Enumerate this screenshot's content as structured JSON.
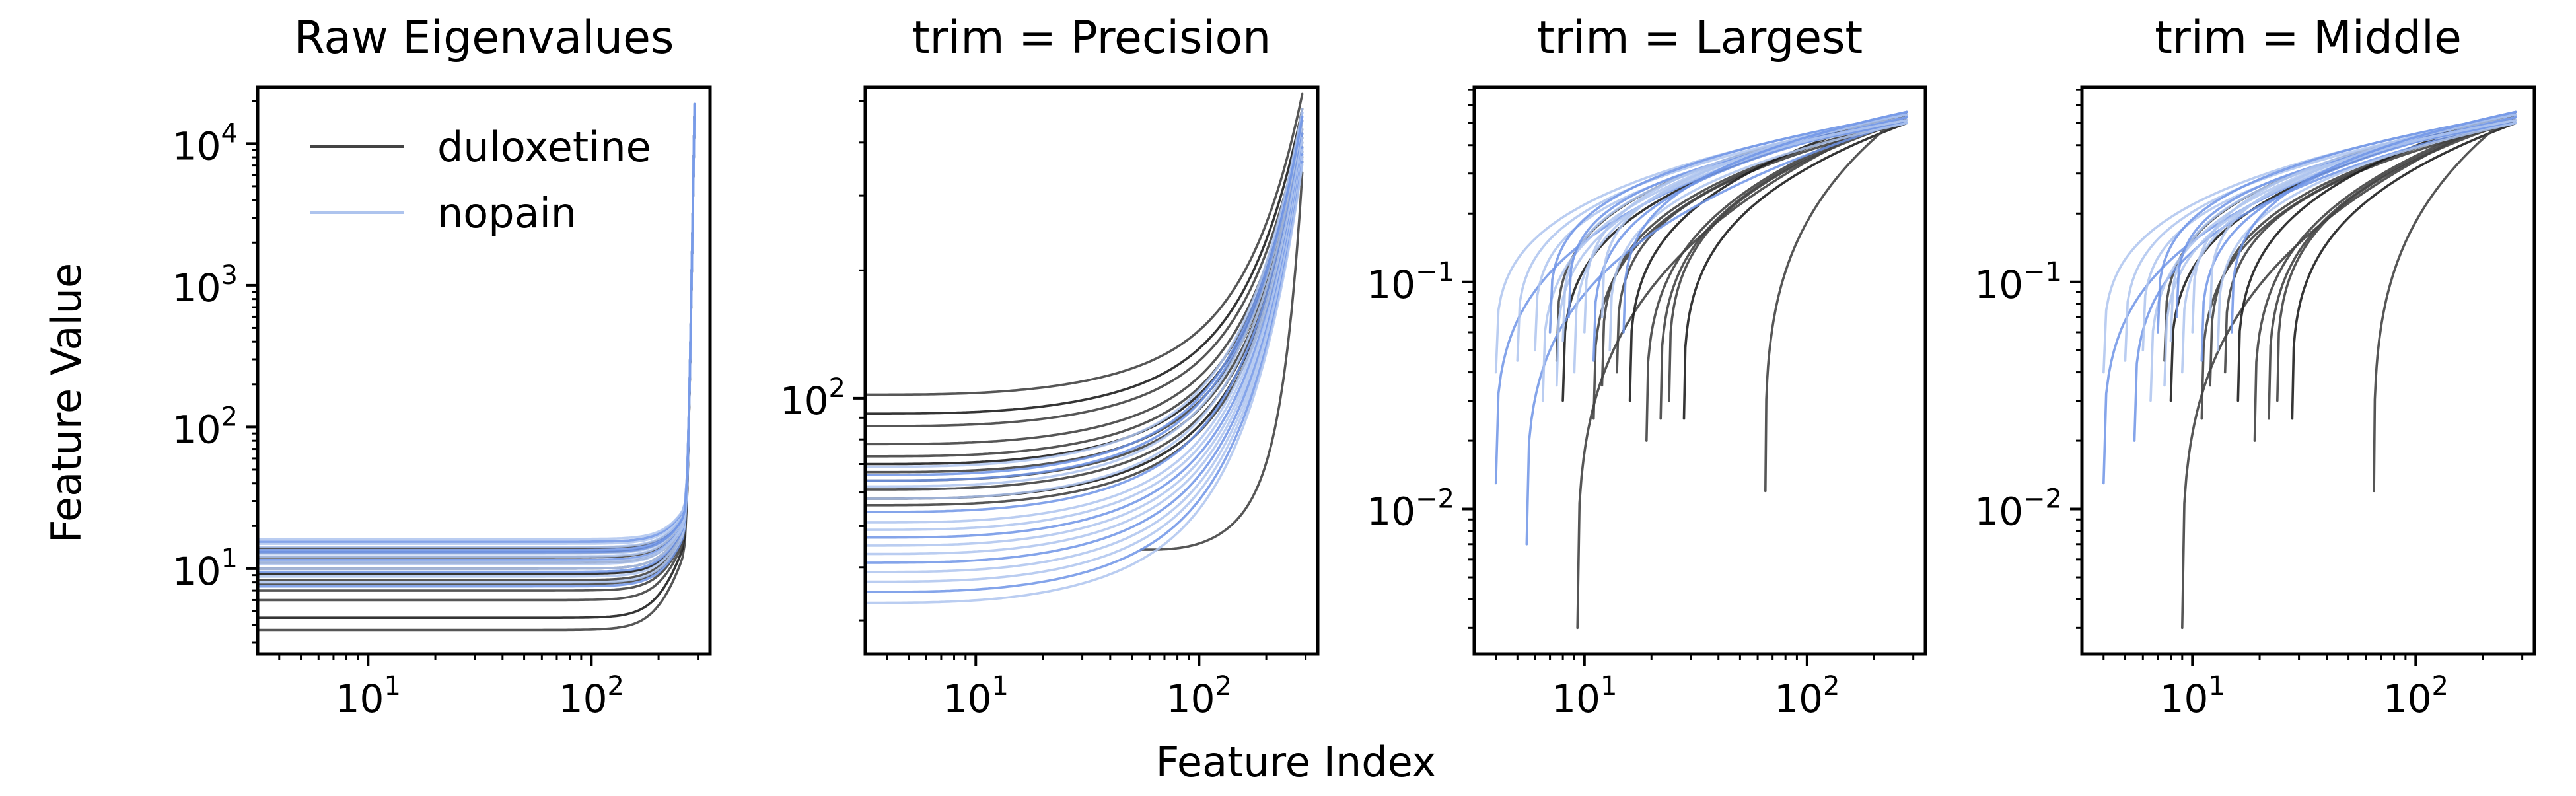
{
  "figure": {
    "xlabel": "Feature Index",
    "ylabel": "Feature Value",
    "legend": {
      "placement": "upper-left of first panel",
      "entries": [
        {
          "label": "duloxetine",
          "color": "#444444"
        },
        {
          "label": "nopain",
          "color": "#aec4ee"
        }
      ]
    }
  },
  "colors": {
    "duloxetine": "#444444",
    "duloxetine_dark": "#1f1f1f",
    "nopain": "#aec4ee",
    "nopain_strong": "#6f94e6"
  },
  "chart_data": [
    {
      "type": "line",
      "title": "Raw Eigenvalues",
      "xscale": "log",
      "yscale": "log",
      "xlim": [
        3.2,
        340
      ],
      "ylim": [
        2.5,
        25000
      ],
      "xticks": [
        {
          "value": 10,
          "base": "10",
          "exp": "1"
        },
        {
          "value": 100,
          "base": "10",
          "exp": "2"
        }
      ],
      "yticks": [
        {
          "value": 10,
          "base": "10",
          "exp": "1"
        },
        {
          "value": 100,
          "base": "10",
          "exp": "2"
        },
        {
          "value": 1000,
          "base": "10",
          "exp": "3"
        },
        {
          "value": 10000,
          "base": "10",
          "exp": "4"
        }
      ],
      "curves": {
        "kind": "raw",
        "n_features": 290,
        "last_value": 19000
      },
      "series": [
        {
          "name": "duloxetine",
          "curves": [
            {
              "start": 3.7,
              "pre_end": 21
            },
            {
              "start": 4.5,
              "pre_end": 24
            },
            {
              "start": 7.0,
              "pre_end": 26
            },
            {
              "start": 7.8,
              "pre_end": 27
            },
            {
              "start": 8.3,
              "pre_end": 28
            },
            {
              "start": 9.2,
              "pre_end": 28
            },
            {
              "start": 10.0,
              "pre_end": 30
            },
            {
              "start": 11.0,
              "pre_end": 30
            },
            {
              "start": 12.0,
              "pre_end": 32
            },
            {
              "start": 13.0,
              "pre_end": 33
            },
            {
              "start": 14.0,
              "pre_end": 33
            },
            {
              "start": 6.0,
              "pre_end": 25
            }
          ]
        },
        {
          "name": "nopain",
          "curves": [
            {
              "start": 7.5,
              "pre_end": 26
            },
            {
              "start": 8.0,
              "pre_end": 27
            },
            {
              "start": 8.8,
              "pre_end": 28
            },
            {
              "start": 9.5,
              "pre_end": 29
            },
            {
              "start": 10.0,
              "pre_end": 30
            },
            {
              "start": 10.8,
              "pre_end": 31
            },
            {
              "start": 11.5,
              "pre_end": 31
            },
            {
              "start": 12.2,
              "pre_end": 32
            },
            {
              "start": 12.8,
              "pre_end": 33
            },
            {
              "start": 13.5,
              "pre_end": 34
            },
            {
              "start": 14.2,
              "pre_end": 34
            },
            {
              "start": 15.0,
              "pre_end": 35
            },
            {
              "start": 15.5,
              "pre_end": 36
            },
            {
              "start": 16.2,
              "pre_end": 36
            },
            {
              "start": 11.2,
              "pre_end": 30
            },
            {
              "start": 13.1,
              "pre_end": 33
            }
          ]
        }
      ]
    },
    {
      "type": "line",
      "title": "trim = Precision",
      "xscale": "log",
      "yscale": "log",
      "xlim": [
        3.2,
        340
      ],
      "ylim": [
        25,
        540
      ],
      "xticks": [
        {
          "value": 10,
          "base": "10",
          "exp": "1"
        },
        {
          "value": 100,
          "base": "10",
          "exp": "2"
        }
      ],
      "yticks": [
        {
          "value": 100,
          "base": "10",
          "exp": "2"
        }
      ],
      "curves": {
        "kind": "precision",
        "end_x": 290
      },
      "series": [
        {
          "name": "duloxetine",
          "curves": [
            {
              "x0": 3.2,
              "start": 102,
              "end": 520
            },
            {
              "x0": 3.2,
              "start": 92,
              "end": 480
            },
            {
              "x0": 3.2,
              "start": 86,
              "end": 450
            },
            {
              "x0": 3.2,
              "start": 78,
              "end": 430
            },
            {
              "x0": 3.2,
              "start": 73,
              "end": 420
            },
            {
              "x0": 3.2,
              "start": 70,
              "end": 410
            },
            {
              "x0": 3.2,
              "start": 67,
              "end": 400
            },
            {
              "x0": 3.2,
              "start": 64,
              "end": 390
            },
            {
              "x0": 3.2,
              "start": 61,
              "end": 380
            },
            {
              "x0": 3.2,
              "start": 58,
              "end": 370
            },
            {
              "x0": 3.2,
              "start": 56,
              "end": 360
            },
            {
              "x0": 55,
              "start": 44,
              "end": 340
            }
          ]
        },
        {
          "name": "nopain",
          "curves": [
            {
              "x0": 3.2,
              "start": 66,
              "end": 470
            },
            {
              "x0": 3.2,
              "start": 62,
              "end": 450
            },
            {
              "x0": 3.2,
              "start": 58,
              "end": 430
            },
            {
              "x0": 3.2,
              "start": 54,
              "end": 420
            },
            {
              "x0": 3.2,
              "start": 51,
              "end": 410
            },
            {
              "x0": 3.2,
              "start": 49,
              "end": 400
            },
            {
              "x0": 3.2,
              "start": 47,
              "end": 390
            },
            {
              "x0": 3.2,
              "start": 45,
              "end": 385
            },
            {
              "x0": 3.2,
              "start": 43,
              "end": 380
            },
            {
              "x0": 3.2,
              "start": 41,
              "end": 375
            },
            {
              "x0": 3.2,
              "start": 39,
              "end": 370
            },
            {
              "x0": 3.2,
              "start": 37,
              "end": 365
            },
            {
              "x0": 3.2,
              "start": 35,
              "end": 360
            },
            {
              "x0": 3.2,
              "start": 33,
              "end": 355
            },
            {
              "x0": 3.2,
              "start": 69,
              "end": 480
            },
            {
              "x0": 3.2,
              "start": 64,
              "end": 460
            }
          ]
        }
      ]
    },
    {
      "type": "line",
      "title": "trim = Largest",
      "xscale": "log",
      "yscale": "log",
      "xlim": [
        3.2,
        340
      ],
      "ylim": [
        0.0023,
        0.72
      ],
      "xticks": [
        {
          "value": 10,
          "base": "10",
          "exp": "1"
        },
        {
          "value": 100,
          "base": "10",
          "exp": "2"
        }
      ],
      "yticks": [
        {
          "value": 0.01,
          "base": "10",
          "exp": "−2"
        },
        {
          "value": 0.1,
          "base": "10",
          "exp": "−1"
        }
      ],
      "curves": {
        "kind": "trim",
        "end_x": 280
      },
      "series": [
        {
          "name": "duloxetine",
          "curves": [
            {
              "x0": 9.3,
              "y0": 0.003
            },
            {
              "x0": 8.0,
              "y0": 0.03
            },
            {
              "x0": 11,
              "y0": 0.025
            },
            {
              "x0": 12,
              "y0": 0.035
            },
            {
              "x0": 14,
              "y0": 0.04
            },
            {
              "x0": 16,
              "y0": 0.03
            },
            {
              "x0": 19,
              "y0": 0.02
            },
            {
              "x0": 22,
              "y0": 0.025
            },
            {
              "x0": 24,
              "y0": 0.03
            },
            {
              "x0": 28,
              "y0": 0.025
            },
            {
              "x0": 65,
              "y0": 0.012
            },
            {
              "x0": 7.5,
              "y0": 0.045
            }
          ]
        },
        {
          "name": "nopain",
          "curves": [
            {
              "x0": 4.0,
              "y0": 0.013
            },
            {
              "x0": 4.0,
              "y0": 0.04
            },
            {
              "x0": 5.0,
              "y0": 0.045
            },
            {
              "x0": 5.5,
              "y0": 0.007
            },
            {
              "x0": 6.0,
              "y0": 0.05
            },
            {
              "x0": 6.5,
              "y0": 0.03
            },
            {
              "x0": 7.0,
              "y0": 0.06
            },
            {
              "x0": 7.5,
              "y0": 0.035
            },
            {
              "x0": 8.0,
              "y0": 0.055
            },
            {
              "x0": 8.5,
              "y0": 0.07
            },
            {
              "x0": 9.0,
              "y0": 0.04
            },
            {
              "x0": 10.0,
              "y0": 0.06
            },
            {
              "x0": 11.0,
              "y0": 0.045
            },
            {
              "x0": 12.0,
              "y0": 0.07
            },
            {
              "x0": 13.0,
              "y0": 0.05
            },
            {
              "x0": 15.0,
              "y0": 0.06
            }
          ]
        }
      ]
    },
    {
      "type": "line",
      "title": "trim = Middle",
      "xscale": "log",
      "yscale": "log",
      "xlim": [
        3.2,
        340
      ],
      "ylim": [
        0.0023,
        0.72
      ],
      "xticks": [
        {
          "value": 10,
          "base": "10",
          "exp": "1"
        },
        {
          "value": 100,
          "base": "10",
          "exp": "2"
        }
      ],
      "yticks": [
        {
          "value": 0.01,
          "base": "10",
          "exp": "−2"
        },
        {
          "value": 0.1,
          "base": "10",
          "exp": "−1"
        }
      ],
      "curves": {
        "kind": "trim",
        "end_x": 280
      },
      "series": [
        {
          "name": "duloxetine",
          "curves": [
            {
              "x0": 9.0,
              "y0": 0.003
            },
            {
              "x0": 8.0,
              "y0": 0.03
            },
            {
              "x0": 11,
              "y0": 0.025
            },
            {
              "x0": 12,
              "y0": 0.035
            },
            {
              "x0": 14,
              "y0": 0.04
            },
            {
              "x0": 16,
              "y0": 0.03
            },
            {
              "x0": 19,
              "y0": 0.02
            },
            {
              "x0": 22,
              "y0": 0.025
            },
            {
              "x0": 24,
              "y0": 0.03
            },
            {
              "x0": 28,
              "y0": 0.025
            },
            {
              "x0": 65,
              "y0": 0.012
            },
            {
              "x0": 7.5,
              "y0": 0.045
            }
          ]
        },
        {
          "name": "nopain",
          "curves": [
            {
              "x0": 4.0,
              "y0": 0.013
            },
            {
              "x0": 4.0,
              "y0": 0.04
            },
            {
              "x0": 5.0,
              "y0": 0.045
            },
            {
              "x0": 5.5,
              "y0": 0.02
            },
            {
              "x0": 6.0,
              "y0": 0.05
            },
            {
              "x0": 6.5,
              "y0": 0.03
            },
            {
              "x0": 7.0,
              "y0": 0.06
            },
            {
              "x0": 7.5,
              "y0": 0.035
            },
            {
              "x0": 8.0,
              "y0": 0.055
            },
            {
              "x0": 8.5,
              "y0": 0.07
            },
            {
              "x0": 9.0,
              "y0": 0.04
            },
            {
              "x0": 10.0,
              "y0": 0.06
            },
            {
              "x0": 11.0,
              "y0": 0.045
            },
            {
              "x0": 12.0,
              "y0": 0.07
            },
            {
              "x0": 13.0,
              "y0": 0.05
            },
            {
              "x0": 15.0,
              "y0": 0.06
            }
          ]
        }
      ]
    }
  ]
}
